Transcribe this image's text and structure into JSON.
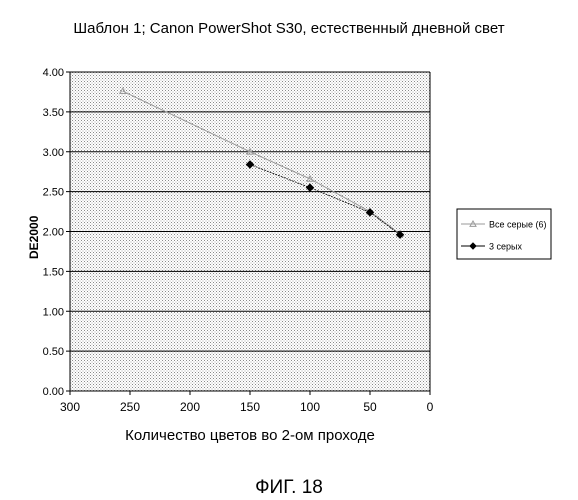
{
  "caption": "ФИГ. 18",
  "chart_data": {
    "type": "line",
    "title": "Шаблон 1; Canon PowerShot S30, естественный дневной свет",
    "xlabel": "Количество цветов во 2-ом проходе",
    "ylabel": "DE2000",
    "xlim": [
      300,
      0
    ],
    "ylim": [
      0,
      4
    ],
    "x_reversed": true,
    "x_ticks": [
      "300",
      "250",
      "200",
      "150",
      "100",
      "50",
      "0"
    ],
    "y_ticks": [
      "0.00",
      "0.50",
      "1.00",
      "1.50",
      "2.00",
      "2.50",
      "3.00",
      "3.50",
      "4.00"
    ],
    "grid": "horizontal",
    "legend_position": "right",
    "series": [
      {
        "name": "Все серые (6)",
        "marker": "triangle",
        "color": "#9a9a9a",
        "x": [
          256,
          150,
          100,
          50,
          25
        ],
        "y": [
          3.76,
          3.0,
          2.66,
          2.25,
          1.97
        ]
      },
      {
        "name": "3 серых",
        "marker": "diamond",
        "color": "#000000",
        "x": [
          150,
          100,
          50,
          25
        ],
        "y": [
          2.84,
          2.55,
          2.24,
          1.96
        ]
      }
    ]
  }
}
